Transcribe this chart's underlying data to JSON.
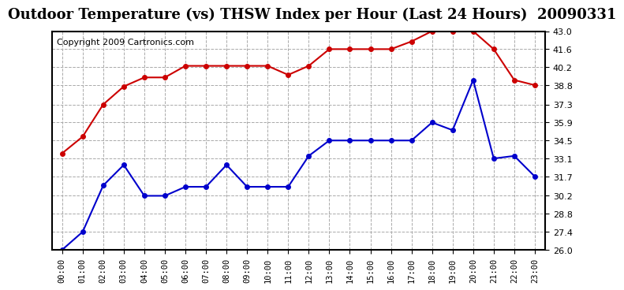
{
  "title": "Outdoor Temperature (vs) THSW Index per Hour (Last 24 Hours)  20090331",
  "copyright": "Copyright 2009 Cartronics.com",
  "hours": [
    "00:00",
    "01:00",
    "02:00",
    "03:00",
    "04:00",
    "05:00",
    "06:00",
    "07:00",
    "08:00",
    "09:00",
    "10:00",
    "11:00",
    "12:00",
    "13:00",
    "14:00",
    "15:00",
    "16:00",
    "17:00",
    "18:00",
    "19:00",
    "20:00",
    "21:00",
    "22:00",
    "23:00"
  ],
  "red_data": [
    33.5,
    34.8,
    37.3,
    38.7,
    39.4,
    39.4,
    40.3,
    40.3,
    40.3,
    40.3,
    40.3,
    39.6,
    40.3,
    41.6,
    41.6,
    41.6,
    41.6,
    42.2,
    43.0,
    43.0,
    43.0,
    41.6,
    39.2,
    38.8
  ],
  "blue_data": [
    26.0,
    27.4,
    31.0,
    32.6,
    30.2,
    30.2,
    30.9,
    30.9,
    32.6,
    30.9,
    30.9,
    30.9,
    33.3,
    34.5,
    34.5,
    34.5,
    34.5,
    34.5,
    35.9,
    35.3,
    39.2,
    33.1,
    33.3,
    31.7
  ],
  "ymin": 26.0,
  "ymax": 43.0,
  "yticks": [
    26.0,
    27.4,
    28.8,
    30.2,
    31.7,
    33.1,
    34.5,
    35.9,
    37.3,
    38.8,
    40.2,
    41.6,
    43.0
  ],
  "red_color": "#cc0000",
  "blue_color": "#0000cc",
  "bg_color": "#ffffff",
  "plot_bg_color": "#ffffff",
  "grid_color": "#aaaaaa",
  "title_fontsize": 13,
  "copyright_fontsize": 8
}
